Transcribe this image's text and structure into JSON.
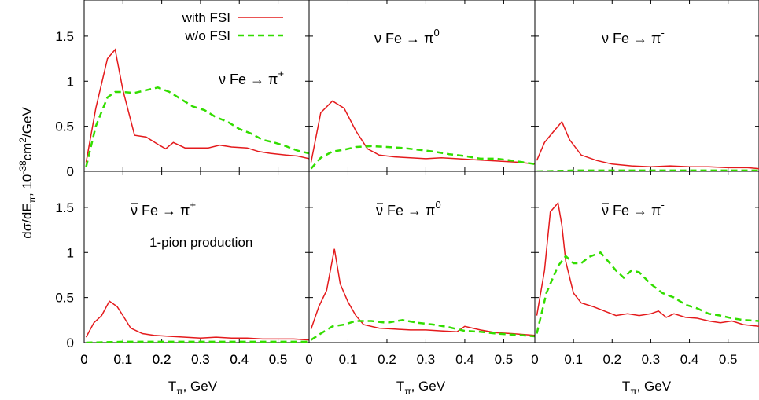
{
  "figure": {
    "ylabel_main": "dσ/dE",
    "ylabel_sub": "π",
    "ylabel_mid": ", 10",
    "ylabel_exp1": "-38",
    "ylabel_cm": "cm",
    "ylabel_exp2": "2",
    "ylabel_end": "/GeV",
    "xlabel_main": "T",
    "xlabel_sub": "π",
    "xlabel_end": ", GeV",
    "colors": {
      "with_fsi": "#e41a1c",
      "without_fsi": "#33dd00",
      "axis": "#000000"
    }
  },
  "legend": {
    "entries": [
      {
        "label": "with FSI",
        "style": "solid",
        "color": "#e41a1c"
      },
      {
        "label": "w/o FSI",
        "style": "dashed",
        "color": "#33dd00"
      }
    ]
  },
  "chart_data": [
    {
      "type": "line",
      "panel": "top-left",
      "reaction": {
        "lead": "ν Fe →",
        "particle": "π",
        "charge": "+"
      },
      "xlim": [
        0,
        0.58
      ],
      "ylim": [
        0,
        1.9
      ],
      "xticks": [
        "0",
        "0.1",
        "0.2",
        "0.3",
        "0.4",
        "0.5"
      ],
      "yticks": [
        "0",
        "0.5",
        "1",
        "1.5"
      ],
      "series": [
        {
          "name": "with FSI",
          "x": [
            0.005,
            0.03,
            0.06,
            0.08,
            0.1,
            0.13,
            0.16,
            0.19,
            0.21,
            0.23,
            0.26,
            0.29,
            0.32,
            0.35,
            0.38,
            0.42,
            0.45,
            0.48,
            0.52,
            0.55,
            0.58
          ],
          "y": [
            0.1,
            0.7,
            1.25,
            1.35,
            0.9,
            0.4,
            0.38,
            0.3,
            0.25,
            0.32,
            0.26,
            0.26,
            0.26,
            0.29,
            0.27,
            0.26,
            0.22,
            0.2,
            0.18,
            0.17,
            0.14
          ]
        },
        {
          "name": "w/o FSI",
          "x": [
            0.005,
            0.03,
            0.06,
            0.08,
            0.1,
            0.13,
            0.16,
            0.19,
            0.22,
            0.25,
            0.28,
            0.31,
            0.34,
            0.37,
            0.4,
            0.43,
            0.46,
            0.49,
            0.52,
            0.55,
            0.58
          ],
          "y": [
            0.05,
            0.5,
            0.82,
            0.88,
            0.88,
            0.87,
            0.9,
            0.93,
            0.88,
            0.8,
            0.72,
            0.68,
            0.6,
            0.55,
            0.47,
            0.42,
            0.35,
            0.32,
            0.28,
            0.23,
            0.2
          ]
        }
      ]
    },
    {
      "type": "line",
      "panel": "top-middle",
      "reaction": {
        "lead": "ν Fe →",
        "particle": "π",
        "charge": "0"
      },
      "xlim": [
        0,
        0.58
      ],
      "ylim": [
        0,
        1.9
      ],
      "xticks": [],
      "yticks": [],
      "series": [
        {
          "name": "with FSI",
          "x": [
            0.005,
            0.03,
            0.06,
            0.09,
            0.12,
            0.15,
            0.18,
            0.22,
            0.26,
            0.3,
            0.34,
            0.38,
            0.42,
            0.46,
            0.5,
            0.54,
            0.58
          ],
          "y": [
            0.1,
            0.65,
            0.78,
            0.7,
            0.45,
            0.25,
            0.18,
            0.16,
            0.15,
            0.14,
            0.15,
            0.14,
            0.13,
            0.12,
            0.11,
            0.1,
            0.08
          ]
        },
        {
          "name": "w/o FSI",
          "x": [
            0.005,
            0.03,
            0.06,
            0.09,
            0.12,
            0.16,
            0.2,
            0.24,
            0.28,
            0.32,
            0.36,
            0.4,
            0.44,
            0.48,
            0.52,
            0.55,
            0.58
          ],
          "y": [
            0.03,
            0.15,
            0.22,
            0.24,
            0.27,
            0.28,
            0.27,
            0.26,
            0.24,
            0.22,
            0.19,
            0.17,
            0.14,
            0.14,
            0.12,
            0.1,
            0.08
          ]
        }
      ]
    },
    {
      "type": "line",
      "panel": "top-right",
      "reaction": {
        "lead": "ν Fe →",
        "particle": "π",
        "charge": "-"
      },
      "xlim": [
        0,
        0.58
      ],
      "ylim": [
        0,
        1.9
      ],
      "xticks": [],
      "yticks": [],
      "series": [
        {
          "name": "with FSI",
          "x": [
            0.005,
            0.025,
            0.05,
            0.07,
            0.09,
            0.12,
            0.16,
            0.2,
            0.25,
            0.3,
            0.35,
            0.4,
            0.45,
            0.5,
            0.55,
            0.58
          ],
          "y": [
            0.12,
            0.32,
            0.45,
            0.55,
            0.35,
            0.18,
            0.12,
            0.08,
            0.06,
            0.05,
            0.06,
            0.05,
            0.05,
            0.04,
            0.04,
            0.03
          ]
        },
        {
          "name": "w/o FSI",
          "x": [
            0.005,
            0.1,
            0.2,
            0.3,
            0.4,
            0.5,
            0.58
          ],
          "y": [
            0.0,
            0.01,
            0.01,
            0.01,
            0.01,
            0.01,
            0.01
          ]
        }
      ]
    },
    {
      "type": "line",
      "panel": "bottom-left",
      "reaction": {
        "lead": "ν Fe →",
        "particle": "π",
        "charge": "+",
        "antineutrino": true
      },
      "annotation": "1-pion production",
      "xlim": [
        0,
        0.58
      ],
      "ylim": [
        0,
        1.9
      ],
      "xticks": [
        "0",
        "0.1",
        "0.2",
        "0.3",
        "0.4",
        "0.5"
      ],
      "yticks": [
        "0",
        "0.5",
        "1",
        "1.5"
      ],
      "series": [
        {
          "name": "with FSI",
          "x": [
            0.005,
            0.025,
            0.045,
            0.065,
            0.085,
            0.1,
            0.12,
            0.15,
            0.18,
            0.22,
            0.26,
            0.3,
            0.34,
            0.38,
            0.42,
            0.46,
            0.5,
            0.54,
            0.58
          ],
          "y": [
            0.06,
            0.22,
            0.3,
            0.46,
            0.4,
            0.3,
            0.16,
            0.1,
            0.08,
            0.07,
            0.06,
            0.05,
            0.06,
            0.05,
            0.05,
            0.04,
            0.04,
            0.04,
            0.03
          ]
        },
        {
          "name": "w/o FSI",
          "x": [
            0.005,
            0.1,
            0.2,
            0.3,
            0.4,
            0.5,
            0.58
          ],
          "y": [
            0.0,
            0.01,
            0.01,
            0.01,
            0.01,
            0.01,
            0.01
          ]
        }
      ]
    },
    {
      "type": "line",
      "panel": "bottom-middle",
      "reaction": {
        "lead": "ν Fe →",
        "particle": "π",
        "charge": "0",
        "antineutrino": true
      },
      "xlim": [
        0,
        0.58
      ],
      "ylim": [
        0,
        1.9
      ],
      "xticks": [
        "0",
        "0.1",
        "0.2",
        "0.3",
        "0.4",
        "0.5"
      ],
      "yticks": [],
      "series": [
        {
          "name": "with FSI",
          "x": [
            0.005,
            0.025,
            0.045,
            0.065,
            0.08,
            0.1,
            0.12,
            0.14,
            0.18,
            0.22,
            0.26,
            0.3,
            0.34,
            0.38,
            0.4,
            0.44,
            0.48,
            0.52,
            0.58
          ],
          "y": [
            0.15,
            0.4,
            0.58,
            1.04,
            0.65,
            0.45,
            0.3,
            0.2,
            0.16,
            0.15,
            0.14,
            0.14,
            0.13,
            0.12,
            0.18,
            0.14,
            0.11,
            0.1,
            0.08
          ]
        },
        {
          "name": "w/o FSI",
          "x": [
            0.005,
            0.03,
            0.06,
            0.09,
            0.12,
            0.16,
            0.2,
            0.24,
            0.28,
            0.32,
            0.36,
            0.4,
            0.44,
            0.48,
            0.52,
            0.55,
            0.58
          ],
          "y": [
            0.03,
            0.1,
            0.18,
            0.2,
            0.24,
            0.24,
            0.22,
            0.25,
            0.22,
            0.2,
            0.17,
            0.13,
            0.12,
            0.1,
            0.09,
            0.08,
            0.07
          ]
        }
      ]
    },
    {
      "type": "line",
      "panel": "bottom-right",
      "reaction": {
        "lead": "ν Fe →",
        "particle": "π",
        "charge": "-",
        "antineutrino": true
      },
      "xlim": [
        0,
        0.58
      ],
      "ylim": [
        0,
        1.9
      ],
      "xticks": [
        "0",
        "0.1",
        "0.2",
        "0.3",
        "0.4",
        "0.5"
      ],
      "yticks": [],
      "series": [
        {
          "name": "with FSI",
          "x": [
            0.005,
            0.025,
            0.04,
            0.06,
            0.07,
            0.08,
            0.1,
            0.12,
            0.15,
            0.18,
            0.21,
            0.24,
            0.27,
            0.3,
            0.32,
            0.34,
            0.36,
            0.39,
            0.42,
            0.45,
            0.48,
            0.51,
            0.54,
            0.58
          ],
          "y": [
            0.3,
            0.8,
            1.45,
            1.55,
            1.3,
            0.9,
            0.55,
            0.44,
            0.4,
            0.35,
            0.3,
            0.32,
            0.3,
            0.32,
            0.35,
            0.28,
            0.32,
            0.28,
            0.27,
            0.24,
            0.22,
            0.24,
            0.2,
            0.18
          ]
        },
        {
          "name": "w/o FSI",
          "x": [
            0.005,
            0.03,
            0.06,
            0.08,
            0.1,
            0.12,
            0.14,
            0.17,
            0.19,
            0.21,
            0.23,
            0.25,
            0.27,
            0.3,
            0.33,
            0.36,
            0.39,
            0.42,
            0.45,
            0.48,
            0.51,
            0.54,
            0.58
          ],
          "y": [
            0.1,
            0.55,
            0.85,
            0.96,
            0.88,
            0.88,
            0.95,
            1.0,
            0.9,
            0.8,
            0.72,
            0.8,
            0.78,
            0.65,
            0.55,
            0.5,
            0.42,
            0.38,
            0.32,
            0.3,
            0.27,
            0.25,
            0.24
          ]
        }
      ]
    }
  ]
}
